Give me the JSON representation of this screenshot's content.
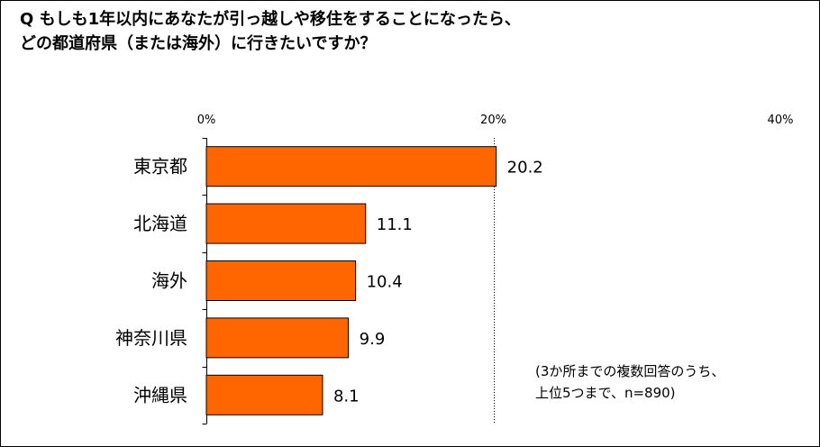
{
  "title_lines": [
    "Q もしも1年以内にあなたが引っ越しや移住をすることになったら、",
    "どの都道府県（または海外）に行きたいですか？"
  ],
  "note_lines": [
    "(3か所までの複数回答のうち、",
    "上位5つまで、n=890)"
  ],
  "colors": {
    "bar_fill": "#FF6600",
    "bar_stroke": "#000000",
    "axis": "#000000",
    "gridline": "#000000"
  },
  "chart_data": {
    "type": "bar",
    "orientation": "horizontal",
    "categories": [
      "東京都",
      "北海道",
      "海外",
      "神奈川県",
      "沖縄県"
    ],
    "values": [
      20.2,
      11.1,
      10.4,
      9.9,
      8.1
    ],
    "value_labels": [
      "20.2",
      "11.1",
      "10.4",
      "9.9",
      "8.1"
    ],
    "xlim": [
      0,
      40
    ],
    "x_ticks": [
      0,
      20,
      40
    ],
    "x_tick_labels": [
      "0%",
      "20%",
      "40%"
    ],
    "x_axis_position": "top",
    "gridlines": "dotted vertical at 20%",
    "legend": "none"
  }
}
